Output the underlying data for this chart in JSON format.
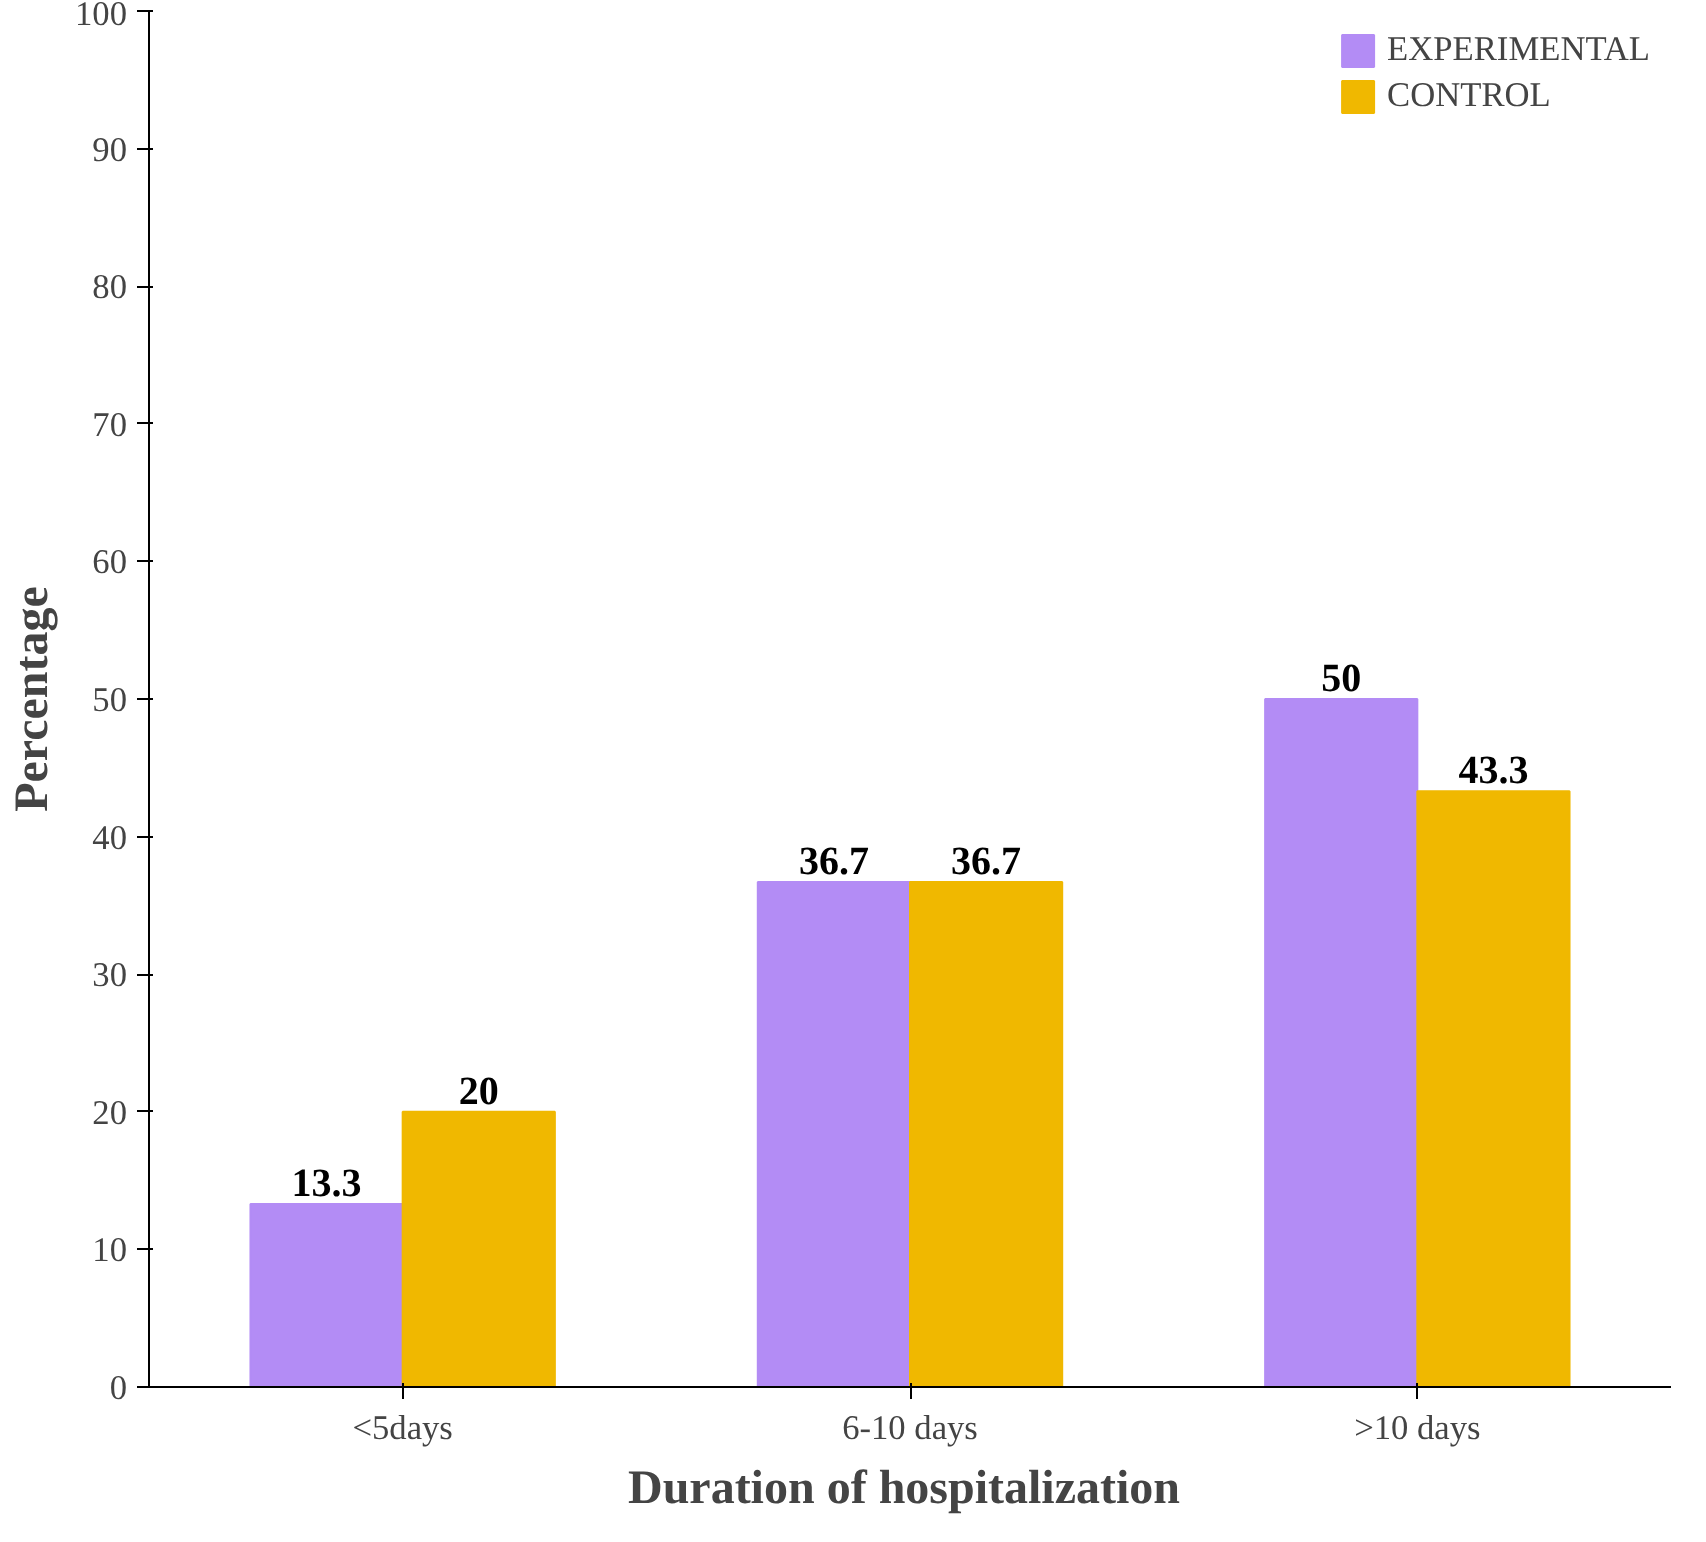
{
  "chart_data": {
    "type": "bar",
    "xlabel": "Duration of  hospitalization",
    "ylabel": "Percentage",
    "categories": [
      "<5days",
      "6-10 days",
      ">10 days"
    ],
    "series": [
      {
        "name": "EXPERIMENTAL",
        "color": "#b38cf5",
        "values": [
          13.3,
          36.7,
          50
        ]
      },
      {
        "name": "CONTROL",
        "color": "#f0b800",
        "values": [
          20,
          36.7,
          43.3
        ]
      }
    ],
    "ylim": [
      0,
      100
    ],
    "yticks": [
      0,
      10,
      20,
      30,
      40,
      50,
      60,
      70,
      80,
      90,
      100
    ],
    "grid": false,
    "legend": "top right",
    "data_labels": true
  }
}
